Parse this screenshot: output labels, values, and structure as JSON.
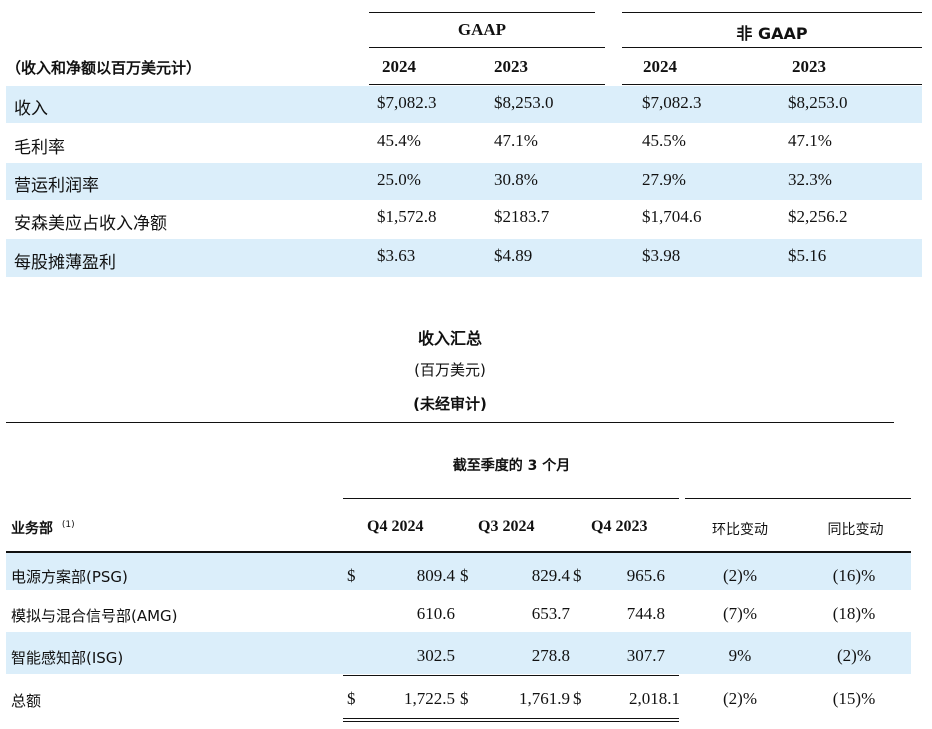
{
  "table1": {
    "group_headers": [
      "GAAP",
      "非 GAAP"
    ],
    "unit_label": "（收入和净额以百万美元计）",
    "year_headers": [
      "2024",
      "2023",
      "2024",
      "2023"
    ],
    "rows": [
      {
        "label": "收入",
        "values": [
          "$7,082.3",
          "$8,253.0",
          "$7,082.3",
          "$8,253.0"
        ]
      },
      {
        "label": "毛利率",
        "values": [
          "45.4%",
          "47.1%",
          "45.5%",
          "47.1%"
        ]
      },
      {
        "label": "营运利润率",
        "values": [
          "25.0%",
          "30.8%",
          "27.9%",
          "32.3%"
        ]
      },
      {
        "label": "安森美应占收入净额",
        "values": [
          "$1,572.8",
          "$2183.7",
          "$1,704.6",
          "$2,256.2"
        ]
      },
      {
        "label": "每股摊薄盈利",
        "values": [
          "$3.63",
          "$4.89",
          "$3.98",
          "$5.16"
        ]
      }
    ]
  },
  "summary": {
    "title": "收入汇总",
    "subtitle": "(百万美元)",
    "note": "(未经审计)"
  },
  "table2": {
    "period_header": "截至季度的 3 个月",
    "segment_header": "业务部",
    "segment_footnote": "(1)",
    "quarter_headers": [
      "Q4 2024",
      "Q3 2024",
      "Q4 2023"
    ],
    "change_headers": [
      "环比变动",
      "同比变动"
    ],
    "rows": [
      {
        "label": "电源方案部(PSG)",
        "values": [
          "809.4",
          "829.4",
          "965.6"
        ],
        "qoq": "(2)%",
        "yoy": "(16)%",
        "dollar": true
      },
      {
        "label": "模拟与混合信号部(AMG)",
        "values": [
          "610.6",
          "653.7",
          "744.8"
        ],
        "qoq": "(7)%",
        "yoy": "(18)%",
        "dollar": false
      },
      {
        "label": "智能感知部(ISG)",
        "values": [
          "302.5",
          "278.8",
          "307.7"
        ],
        "qoq": "9%",
        "yoy": "(2)%",
        "dollar": false
      },
      {
        "label": "总额",
        "values": [
          "1,722.5",
          "1,761.9",
          "2,018.1"
        ],
        "qoq": "(2)%",
        "yoy": "(15)%",
        "dollar": true
      }
    ],
    "currency_symbol": "$"
  }
}
